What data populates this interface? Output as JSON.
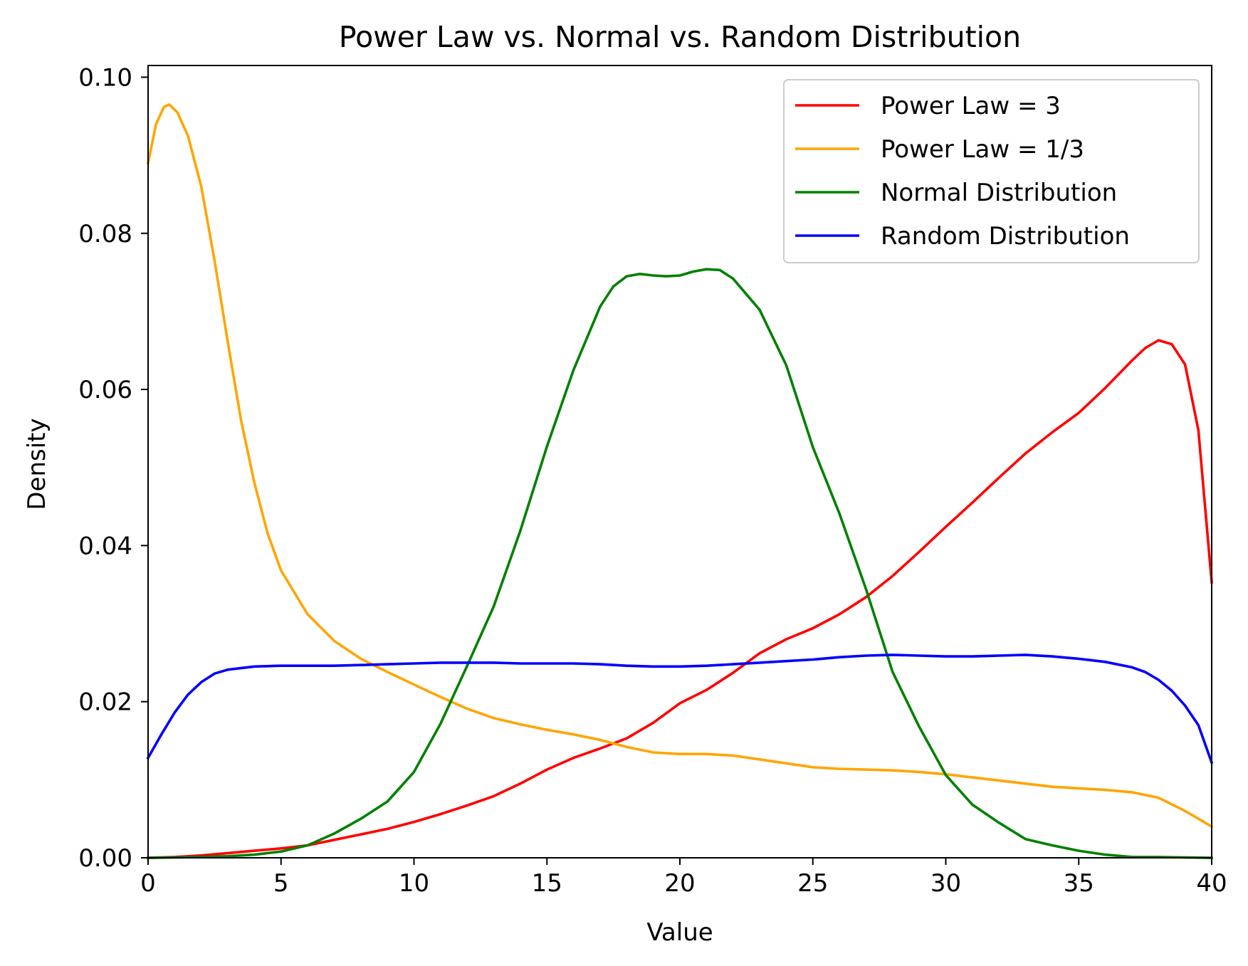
{
  "chart_data": {
    "type": "line",
    "title": "Power Law vs. Normal vs. Random Distribution",
    "xlabel": "Value",
    "ylabel": "Density",
    "xlim": [
      0,
      40
    ],
    "ylim": [
      0,
      0.1015
    ],
    "x_ticks": [
      0,
      5,
      10,
      15,
      20,
      25,
      30,
      35,
      40
    ],
    "x_tick_labels": [
      "0",
      "5",
      "10",
      "15",
      "20",
      "25",
      "30",
      "35",
      "40"
    ],
    "y_ticks": [
      0,
      0.02,
      0.04,
      0.06,
      0.08,
      0.1
    ],
    "y_tick_labels": [
      "0.00",
      "0.02",
      "0.04",
      "0.06",
      "0.08",
      "0.10"
    ],
    "grid": false,
    "legend_position": "top-right",
    "series": [
      {
        "name": "Power Law = 3",
        "color": "#ff0000",
        "points": [
          [
            0,
            0
          ],
          [
            1,
            0.0001
          ],
          [
            2,
            0.0003
          ],
          [
            3,
            0.0006
          ],
          [
            4,
            0.0009
          ],
          [
            5,
            0.0012
          ],
          [
            6,
            0.0016
          ],
          [
            7,
            0.0023
          ],
          [
            8,
            0.003
          ],
          [
            9,
            0.0037
          ],
          [
            10,
            0.0046
          ],
          [
            11,
            0.0056
          ],
          [
            12,
            0.0067
          ],
          [
            13,
            0.0079
          ],
          [
            14,
            0.0095
          ],
          [
            15,
            0.0113
          ],
          [
            16,
            0.0128
          ],
          [
            17,
            0.014
          ],
          [
            18,
            0.0153
          ],
          [
            19,
            0.0173
          ],
          [
            20,
            0.0198
          ],
          [
            21,
            0.0215
          ],
          [
            22,
            0.0237
          ],
          [
            23,
            0.0262
          ],
          [
            24,
            0.028
          ],
          [
            25,
            0.0294
          ],
          [
            26,
            0.0312
          ],
          [
            27,
            0.0334
          ],
          [
            28,
            0.0361
          ],
          [
            29,
            0.0392
          ],
          [
            30,
            0.0424
          ],
          [
            31,
            0.0455
          ],
          [
            32,
            0.0487
          ],
          [
            33,
            0.0518
          ],
          [
            34,
            0.0545
          ],
          [
            35,
            0.057
          ],
          [
            36,
            0.0602
          ],
          [
            37,
            0.0637
          ],
          [
            37.5,
            0.0653
          ],
          [
            38,
            0.0663
          ],
          [
            38.5,
            0.0658
          ],
          [
            39,
            0.0632
          ],
          [
            39.5,
            0.0548
          ],
          [
            40,
            0.0353
          ]
        ]
      },
      {
        "name": "Power Law = 1/3",
        "color": "#ffa500",
        "points": [
          [
            0,
            0.089
          ],
          [
            0.3,
            0.094
          ],
          [
            0.6,
            0.0962
          ],
          [
            0.8,
            0.0965
          ],
          [
            1.1,
            0.0955
          ],
          [
            1.5,
            0.0925
          ],
          [
            2,
            0.086
          ],
          [
            2.5,
            0.0765
          ],
          [
            3,
            0.066
          ],
          [
            3.5,
            0.056
          ],
          [
            4,
            0.048
          ],
          [
            4.5,
            0.0415
          ],
          [
            5,
            0.0368
          ],
          [
            6,
            0.0312
          ],
          [
            7,
            0.0278
          ],
          [
            8,
            0.0255
          ],
          [
            9,
            0.0238
          ],
          [
            10,
            0.0222
          ],
          [
            11,
            0.0206
          ],
          [
            12,
            0.0191
          ],
          [
            13,
            0.0179
          ],
          [
            14,
            0.0171
          ],
          [
            15,
            0.0164
          ],
          [
            16,
            0.0158
          ],
          [
            17,
            0.0151
          ],
          [
            18,
            0.0142
          ],
          [
            19,
            0.0135
          ],
          [
            20,
            0.0133
          ],
          [
            21,
            0.0133
          ],
          [
            22,
            0.0131
          ],
          [
            23,
            0.0126
          ],
          [
            24,
            0.0121
          ],
          [
            25,
            0.0116
          ],
          [
            26,
            0.0114
          ],
          [
            27,
            0.0113
          ],
          [
            28,
            0.0112
          ],
          [
            29,
            0.011
          ],
          [
            30,
            0.0107
          ],
          [
            31,
            0.0103
          ],
          [
            32,
            0.0099
          ],
          [
            33,
            0.0095
          ],
          [
            34,
            0.0091
          ],
          [
            35,
            0.0089
          ],
          [
            36,
            0.0087
          ],
          [
            37,
            0.0084
          ],
          [
            38,
            0.0077
          ],
          [
            39,
            0.006
          ],
          [
            40,
            0.004
          ]
        ]
      },
      {
        "name": "Normal Distribution",
        "color": "#008000",
        "points": [
          [
            0,
            0
          ],
          [
            2,
            0.0001
          ],
          [
            3,
            0.0002
          ],
          [
            4,
            0.0004
          ],
          [
            5,
            0.0008
          ],
          [
            6,
            0.0016
          ],
          [
            7,
            0.0031
          ],
          [
            8,
            0.005
          ],
          [
            9,
            0.0072
          ],
          [
            10,
            0.011
          ],
          [
            11,
            0.0172
          ],
          [
            12,
            0.0246
          ],
          [
            13,
            0.0322
          ],
          [
            14,
            0.0419
          ],
          [
            15,
            0.0527
          ],
          [
            16,
            0.0625
          ],
          [
            17,
            0.0706
          ],
          [
            17.5,
            0.0732
          ],
          [
            18,
            0.0745
          ],
          [
            18.5,
            0.0748
          ],
          [
            19,
            0.0746
          ],
          [
            19.5,
            0.0745
          ],
          [
            20,
            0.0746
          ],
          [
            20.5,
            0.0751
          ],
          [
            21,
            0.0754
          ],
          [
            21.5,
            0.0753
          ],
          [
            22,
            0.0742
          ],
          [
            23,
            0.0702
          ],
          [
            24,
            0.0631
          ],
          [
            25,
            0.0526
          ],
          [
            26,
            0.0441
          ],
          [
            27,
            0.0344
          ],
          [
            28,
            0.0238
          ],
          [
            29,
            0.0168
          ],
          [
            30,
            0.0106
          ],
          [
            31,
            0.0068
          ],
          [
            32,
            0.0045
          ],
          [
            33,
            0.0024
          ],
          [
            34,
            0.0016
          ],
          [
            35,
            0.0009
          ],
          [
            36,
            0.0004
          ],
          [
            37,
            0.0001
          ],
          [
            38,
            0.0001
          ],
          [
            40,
            0
          ]
        ]
      },
      {
        "name": "Random Distribution",
        "color": "#0000ff",
        "points": [
          [
            0,
            0.0128
          ],
          [
            0.5,
            0.0158
          ],
          [
            1,
            0.0186
          ],
          [
            1.5,
            0.0209
          ],
          [
            2,
            0.0225
          ],
          [
            2.5,
            0.0236
          ],
          [
            3,
            0.0241
          ],
          [
            4,
            0.0245
          ],
          [
            5,
            0.0246
          ],
          [
            6,
            0.0246
          ],
          [
            7,
            0.0246
          ],
          [
            8,
            0.0247
          ],
          [
            9,
            0.0248
          ],
          [
            10,
            0.0249
          ],
          [
            11,
            0.025
          ],
          [
            12,
            0.025
          ],
          [
            13,
            0.025
          ],
          [
            14,
            0.0249
          ],
          [
            15,
            0.0249
          ],
          [
            16,
            0.0249
          ],
          [
            17,
            0.0248
          ],
          [
            18,
            0.0246
          ],
          [
            19,
            0.0245
          ],
          [
            20,
            0.0245
          ],
          [
            21,
            0.0246
          ],
          [
            22,
            0.0248
          ],
          [
            23,
            0.025
          ],
          [
            24,
            0.0252
          ],
          [
            25,
            0.0254
          ],
          [
            26,
            0.0257
          ],
          [
            27,
            0.0259
          ],
          [
            28,
            0.026
          ],
          [
            29,
            0.0259
          ],
          [
            30,
            0.0258
          ],
          [
            31,
            0.0258
          ],
          [
            32,
            0.0259
          ],
          [
            33,
            0.026
          ],
          [
            34,
            0.0258
          ],
          [
            35,
            0.0255
          ],
          [
            36,
            0.0251
          ],
          [
            37,
            0.0244
          ],
          [
            37.5,
            0.0238
          ],
          [
            38,
            0.0228
          ],
          [
            38.5,
            0.0214
          ],
          [
            39,
            0.0195
          ],
          [
            39.5,
            0.017
          ],
          [
            40,
            0.0122
          ]
        ]
      }
    ]
  }
}
